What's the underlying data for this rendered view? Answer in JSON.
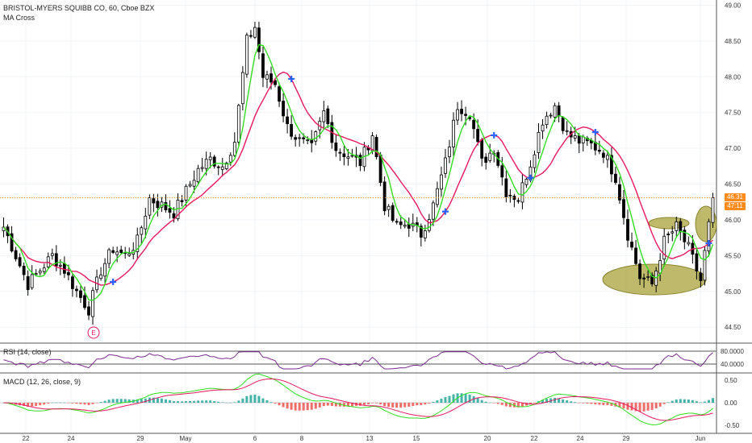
{
  "legend": {
    "symbol_line": "BRISTOL-MYERS SQUIBB CO, 60, Cboe BZX",
    "indicator": "MA Cross",
    "rsi": "RSI (14, close)",
    "macd": "MACD (12, 26, close, 9)"
  },
  "last_price_label": "46.31",
  "countdown_label": "47:11",
  "earnings_marker": "E",
  "colors": {
    "up": "#ffffff",
    "down": "#000000",
    "fast_ma": "#33dd22",
    "slow_ma": "#e8175d",
    "rsi": "#7b2d8e",
    "macd": "#33dd22",
    "signal": "#e8175d",
    "hist_up": "#26a69a",
    "hist_down": "#ef5350",
    "last_line": "#ff8c1a",
    "highlight": "#a8a23a"
  },
  "chart_data": [
    {
      "type": "candlestick",
      "title": "BRISTOL-MYERS SQUIBB CO, 60, Cboe BZX",
      "ylim": [
        44.3,
        49.05
      ],
      "y_ticks": [
        "44.50",
        "45.00",
        "45.50",
        "46.00",
        "46.50",
        "47.00",
        "47.50",
        "48.00",
        "48.50",
        "49.00"
      ],
      "x_ticks": [
        "22",
        "24",
        "29",
        "May",
        "6",
        "8",
        "13",
        "15",
        "20",
        "22",
        "24",
        "29",
        "Jun"
      ],
      "anchors": [
        {
          "d": 0,
          "p": 45.9
        },
        {
          "d": 3,
          "p": 45.5
        },
        {
          "d": 6,
          "p": 45.1
        },
        {
          "d": 9,
          "p": 45.3
        },
        {
          "d": 12,
          "p": 45.5
        },
        {
          "d": 15,
          "p": 45.3
        },
        {
          "d": 18,
          "p": 45.0
        },
        {
          "d": 21,
          "p": 44.75
        },
        {
          "d": 24,
          "p": 45.3
        },
        {
          "d": 27,
          "p": 45.6
        },
        {
          "d": 30,
          "p": 45.5
        },
        {
          "d": 33,
          "p": 45.7
        },
        {
          "d": 36,
          "p": 46.3
        },
        {
          "d": 39,
          "p": 46.2
        },
        {
          "d": 42,
          "p": 46.1
        },
        {
          "d": 45,
          "p": 46.4
        },
        {
          "d": 48,
          "p": 46.7
        },
        {
          "d": 51,
          "p": 46.85
        },
        {
          "d": 54,
          "p": 46.75
        },
        {
          "d": 57,
          "p": 47.1
        },
        {
          "d": 60,
          "p": 48.5
        },
        {
          "d": 62,
          "p": 48.7
        },
        {
          "d": 64,
          "p": 48.0
        },
        {
          "d": 67,
          "p": 47.9
        },
        {
          "d": 70,
          "p": 47.3
        },
        {
          "d": 73,
          "p": 47.1
        },
        {
          "d": 76,
          "p": 47.0
        },
        {
          "d": 79,
          "p": 47.5
        },
        {
          "d": 82,
          "p": 47.0
        },
        {
          "d": 85,
          "p": 46.9
        },
        {
          "d": 88,
          "p": 46.8
        },
        {
          "d": 91,
          "p": 47.2
        },
        {
          "d": 94,
          "p": 46.2
        },
        {
          "d": 97,
          "p": 45.9
        },
        {
          "d": 100,
          "p": 45.95
        },
        {
          "d": 103,
          "p": 45.8
        },
        {
          "d": 106,
          "p": 46.2
        },
        {
          "d": 109,
          "p": 46.8
        },
        {
          "d": 112,
          "p": 47.6
        },
        {
          "d": 115,
          "p": 47.5
        },
        {
          "d": 118,
          "p": 46.8
        },
        {
          "d": 121,
          "p": 47.0
        },
        {
          "d": 124,
          "p": 46.4
        },
        {
          "d": 127,
          "p": 46.3
        },
        {
          "d": 130,
          "p": 46.8
        },
        {
          "d": 133,
          "p": 47.4
        },
        {
          "d": 136,
          "p": 47.6
        },
        {
          "d": 139,
          "p": 47.2
        },
        {
          "d": 142,
          "p": 47.1
        },
        {
          "d": 145,
          "p": 47.05
        },
        {
          "d": 148,
          "p": 46.95
        },
        {
          "d": 151,
          "p": 46.6
        },
        {
          "d": 154,
          "p": 45.8
        },
        {
          "d": 157,
          "p": 45.2
        },
        {
          "d": 160,
          "p": 45.1
        },
        {
          "d": 163,
          "p": 45.7
        },
        {
          "d": 166,
          "p": 45.9
        },
        {
          "d": 169,
          "p": 45.6
        },
        {
          "d": 172,
          "p": 45.15
        },
        {
          "d": 175,
          "p": 46.31
        }
      ],
      "fast_ma_color": "#33dd22",
      "slow_ma_color": "#e8175d",
      "cross_markers_d": [
        27,
        71,
        109,
        121,
        130,
        146,
        174
      ],
      "last_price": 46.31
    },
    {
      "type": "line",
      "name": "RSI (14, close)",
      "ylim": [
        20,
        100
      ],
      "y_ticks": [
        "80.0000",
        "40.0000"
      ],
      "upper_band": 80,
      "lower_band": 40
    },
    {
      "type": "bar",
      "name": "MACD (12, 26, close, 9)",
      "ylim": [
        -0.62,
        0.62
      ],
      "y_ticks": [
        "0.50",
        "0.00",
        "-0.50"
      ]
    }
  ]
}
